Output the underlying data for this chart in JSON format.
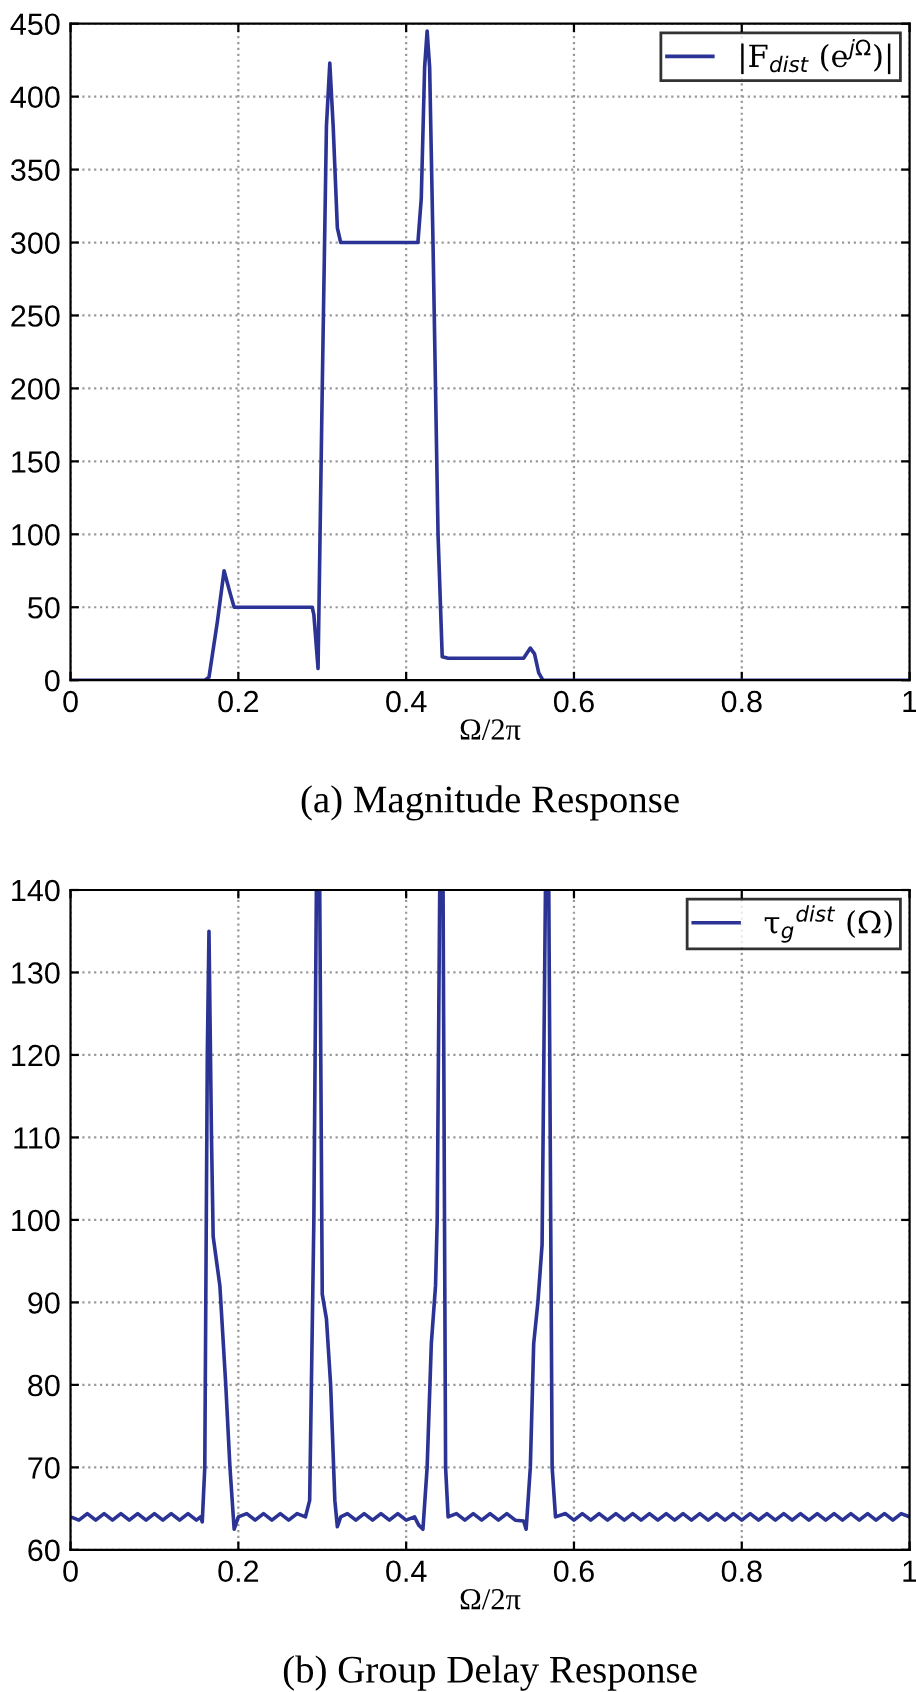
{
  "chart_data": [
    {
      "type": "line",
      "title": "(a) Magnitude Response",
      "xlabel": "Ω/2π",
      "xlim": [
        0,
        1
      ],
      "xticks": [
        0,
        0.2,
        0.4,
        0.6,
        0.8,
        1
      ],
      "ylim": [
        0,
        450
      ],
      "yticks": [
        0,
        50,
        100,
        150,
        200,
        250,
        300,
        350,
        400,
        450
      ],
      "grid": true,
      "legend": "top right",
      "series": [
        {
          "name": "|F$_{dist}$ (e$^{jΩ}$)|",
          "color": "#2b3395",
          "x": [
            0,
            0.16,
            0.165,
            0.175,
            0.183,
            0.19,
            0.195,
            0.25,
            0.288,
            0.29,
            0.295,
            0.3,
            0.305,
            0.309,
            0.313,
            0.318,
            0.322,
            0.35,
            0.38,
            0.414,
            0.418,
            0.422,
            0.425,
            0.428,
            0.432,
            0.438,
            0.443,
            0.45,
            0.5,
            0.54,
            0.548,
            0.553,
            0.558,
            0.563,
            1
          ],
          "values": [
            0,
            0,
            2,
            40,
            75,
            60,
            50,
            50,
            50,
            45,
            8,
            200,
            380,
            423,
            380,
            310,
            300,
            300,
            300,
            300,
            330,
            420,
            445,
            420,
            300,
            100,
            16,
            15,
            15,
            15,
            22,
            18,
            5,
            0,
            0
          ]
        }
      ]
    },
    {
      "type": "line",
      "title": "(b) Group Delay Response",
      "xlabel": "Ω/2π",
      "xlim": [
        0,
        1
      ],
      "xticks": [
        0,
        0.2,
        0.4,
        0.6,
        0.8,
        1
      ],
      "ylim": [
        60,
        140
      ],
      "yticks": [
        60,
        70,
        80,
        90,
        100,
        110,
        120,
        130,
        140
      ],
      "grid": true,
      "legend": "top right",
      "series": [
        {
          "name": "τ$_{g}$$^{dist}$ (Ω)",
          "color": "#2b3395",
          "x": [
            0,
            0.01,
            0.02,
            0.03,
            0.04,
            0.05,
            0.06,
            0.07,
            0.08,
            0.09,
            0.1,
            0.11,
            0.12,
            0.13,
            0.14,
            0.15,
            0.155,
            0.157,
            0.16,
            0.163,
            0.165,
            0.168,
            0.17,
            0.178,
            0.185,
            0.19,
            0.195,
            0.2,
            0.21,
            0.22,
            0.23,
            0.24,
            0.25,
            0.26,
            0.27,
            0.28,
            0.285,
            0.29,
            0.293,
            0.297,
            0.3,
            0.305,
            0.31,
            0.315,
            0.318,
            0.322,
            0.33,
            0.34,
            0.35,
            0.36,
            0.37,
            0.38,
            0.39,
            0.4,
            0.41,
            0.415,
            0.42,
            0.425,
            0.43,
            0.435,
            0.437,
            0.44,
            0.444,
            0.447,
            0.45,
            0.46,
            0.47,
            0.48,
            0.49,
            0.5,
            0.51,
            0.52,
            0.53,
            0.54,
            0.543,
            0.548,
            0.552,
            0.557,
            0.562,
            0.566,
            0.57,
            0.574,
            0.578,
            0.59,
            0.6,
            0.61,
            0.62,
            0.63,
            0.64,
            0.65,
            0.66,
            0.67,
            0.68,
            0.69,
            0.7,
            0.71,
            0.72,
            0.73,
            0.74,
            0.75,
            0.76,
            0.77,
            0.78,
            0.79,
            0.8,
            0.81,
            0.82,
            0.83,
            0.84,
            0.85,
            0.86,
            0.87,
            0.88,
            0.89,
            0.9,
            0.91,
            0.92,
            0.93,
            0.94,
            0.95,
            0.96,
            0.97,
            0.98,
            0.99,
            1
          ],
          "values": [
            64,
            63.6,
            64.4,
            63.6,
            64.4,
            63.6,
            64.4,
            63.6,
            64.4,
            63.6,
            64.4,
            63.6,
            64.4,
            63.6,
            64.4,
            63.6,
            64,
            63.4,
            70,
            120,
            135,
            110,
            98,
            92,
            80,
            70,
            62.5,
            64,
            64.4,
            63.6,
            64.4,
            63.6,
            64.4,
            63.6,
            64.4,
            64,
            66,
            100,
            140,
            140,
            91,
            88,
            80,
            66,
            62.8,
            64,
            64.4,
            63.6,
            64.4,
            63.6,
            64.4,
            63.6,
            64.4,
            63.6,
            64,
            63,
            62.5,
            70,
            85,
            92,
            100,
            140,
            140,
            70,
            64,
            64.4,
            63.6,
            64.4,
            63.6,
            64.4,
            63.6,
            64.4,
            63.6,
            63.5,
            62.5,
            70,
            85,
            90,
            97,
            140,
            140,
            70,
            64,
            64.4,
            63.6,
            64.4,
            63.6,
            64.4,
            63.6,
            64.4,
            63.6,
            64.4,
            63.6,
            64.4,
            63.6,
            64.4,
            63.6,
            64.4,
            63.6,
            64.4,
            63.6,
            64.4,
            63.6,
            64.4,
            63.6,
            64.4,
            63.6,
            64.4,
            63.6,
            64.4,
            63.6,
            64.4,
            63.6,
            64.4,
            63.6,
            64.4,
            63.6,
            64.4,
            63.6,
            64.4,
            63.6,
            64.4,
            63.6,
            64.4,
            64
          ]
        }
      ]
    }
  ]
}
